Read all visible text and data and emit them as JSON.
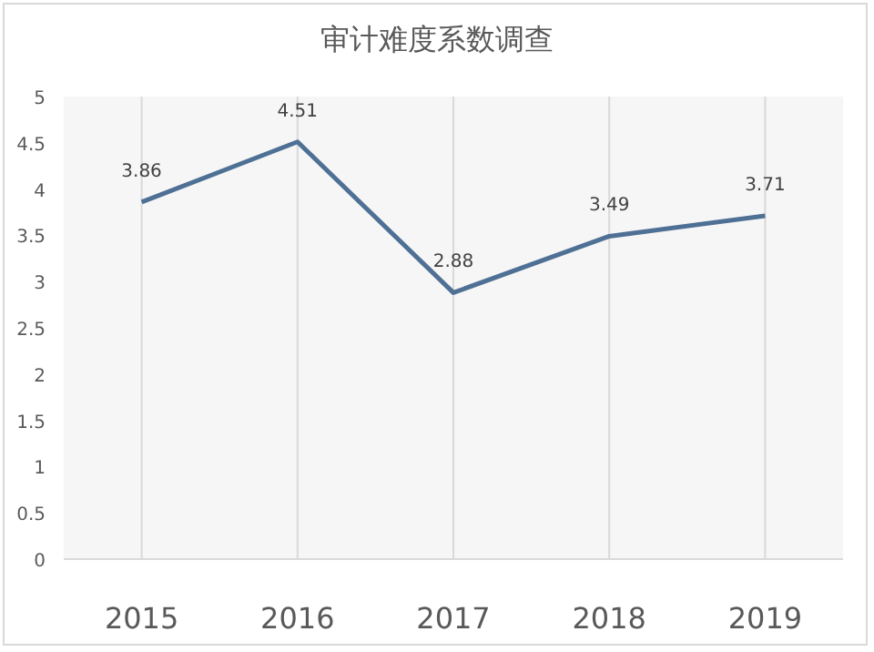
{
  "chart_data": {
    "type": "line",
    "title": "审计难度系数调查",
    "categories": [
      "2015",
      "2016",
      "2017",
      "2018",
      "2019"
    ],
    "series": [
      {
        "color": "#4f7095",
        "values": [
          3.86,
          4.51,
          2.88,
          3.49,
          3.71
        ]
      }
    ],
    "ylim": [
      0,
      5
    ],
    "yticks": [
      0,
      0.5,
      1,
      1.5,
      2,
      2.5,
      3,
      3.5,
      4,
      4.5,
      5
    ],
    "grid": "x",
    "data_labels": true,
    "marker": "none",
    "line_style": "solid"
  }
}
